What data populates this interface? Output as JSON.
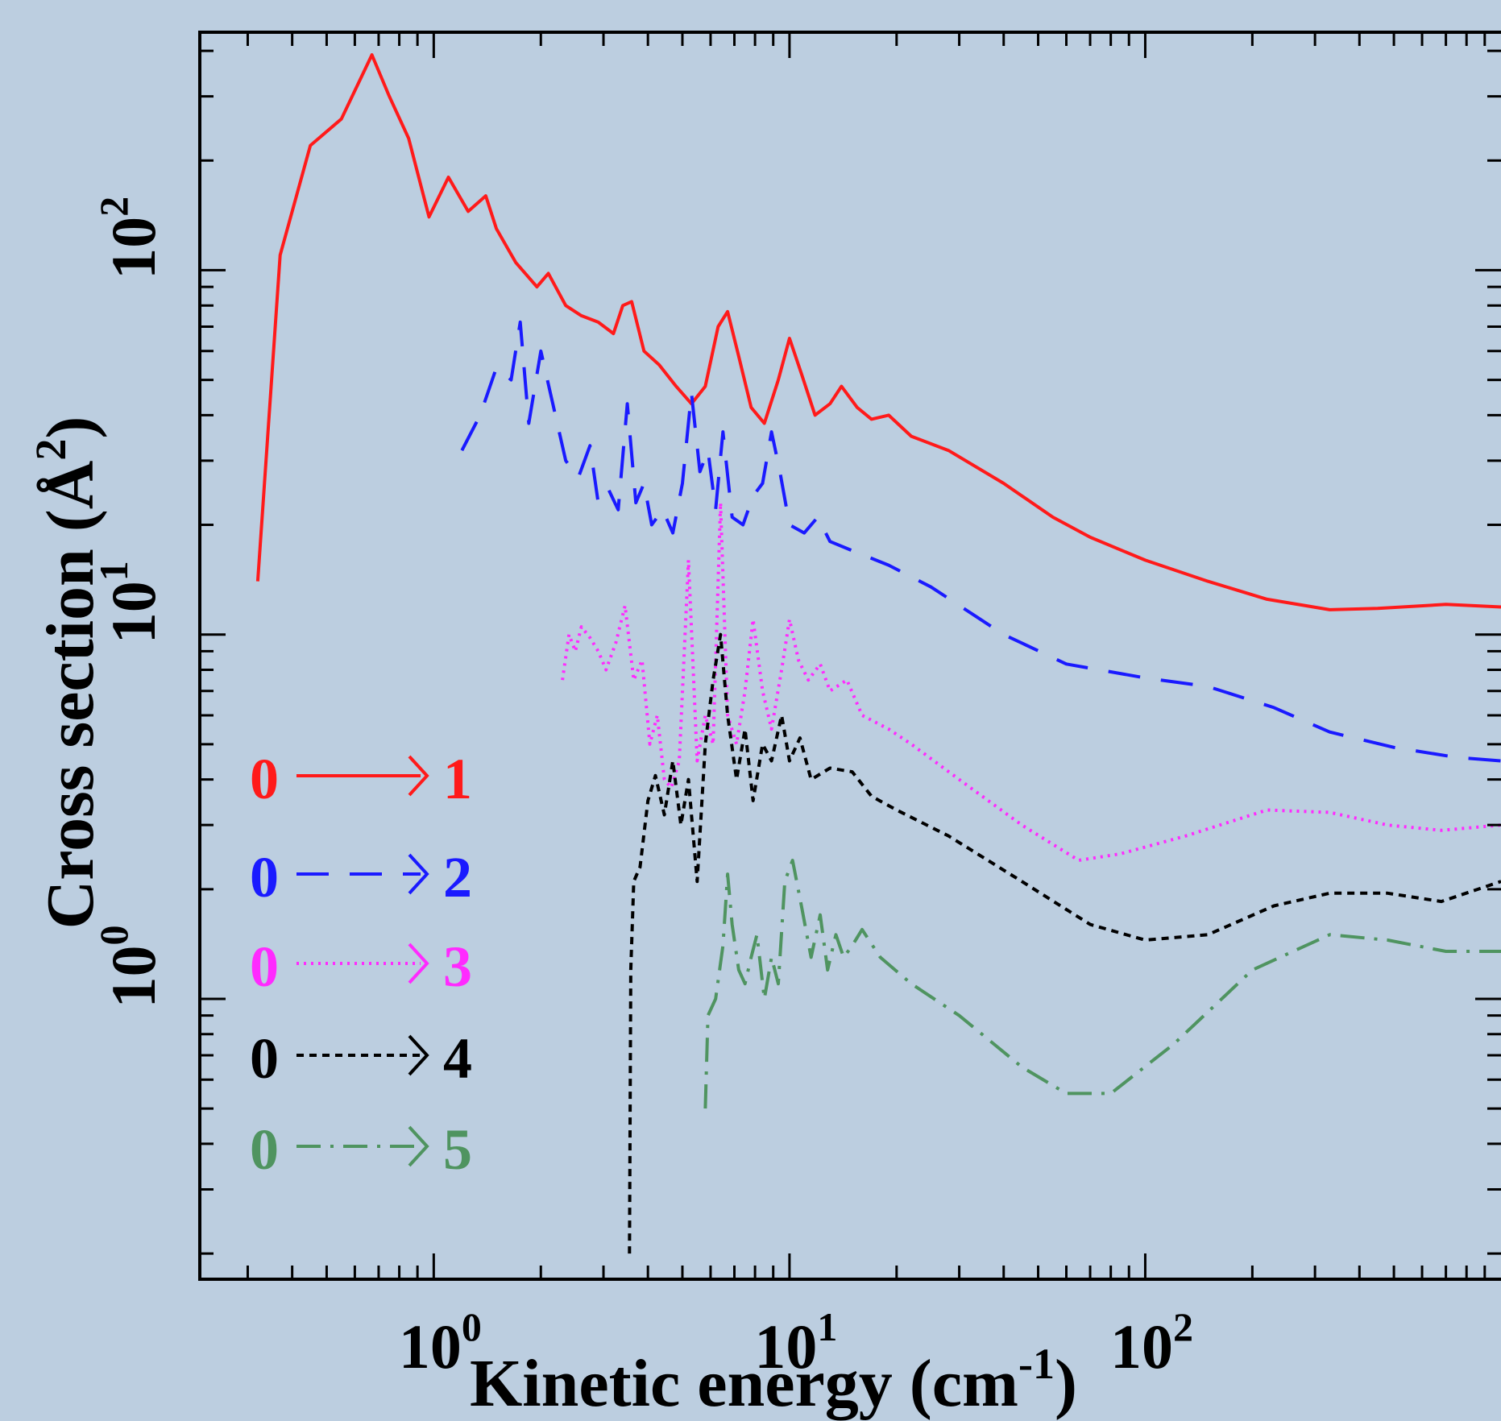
{
  "chart_data": {
    "type": "line",
    "xlabel": "Kinetic energy (cm",
    "xlabel_sup": "-1",
    "xlabel_close": ")",
    "ylabel": "Cross section (Å",
    "ylabel_sup": "2",
    "ylabel_close": ")",
    "xscale": "log",
    "yscale": "log",
    "xlim": [
      0.22,
      1000
    ],
    "ylim": [
      0.17,
      450
    ],
    "x_ticks": [
      {
        "value": 1,
        "base": "10",
        "exp": "0"
      },
      {
        "value": 10,
        "base": "10",
        "exp": "1"
      },
      {
        "value": 100,
        "base": "10",
        "exp": "2"
      }
    ],
    "y_ticks": [
      {
        "value": 1,
        "base": "10",
        "exp": "0"
      },
      {
        "value": 10,
        "base": "10",
        "exp": "1"
      },
      {
        "value": 100,
        "base": "10",
        "exp": "2"
      }
    ],
    "grid": false,
    "legend_position": "bottom-left",
    "series": [
      {
        "name": "0 → 1",
        "from": "0",
        "to": "1",
        "color": "#ff1a1a",
        "dash": "solid",
        "points": [
          [
            0.32,
            14
          ],
          [
            0.37,
            110
          ],
          [
            0.45,
            220
          ],
          [
            0.55,
            260
          ],
          [
            0.67,
            390
          ],
          [
            0.75,
            300
          ],
          [
            0.85,
            230
          ],
          [
            0.97,
            140
          ],
          [
            1.1,
            180
          ],
          [
            1.25,
            145
          ],
          [
            1.4,
            160
          ],
          [
            1.5,
            130
          ],
          [
            1.7,
            105
          ],
          [
            1.95,
            90
          ],
          [
            2.1,
            98
          ],
          [
            2.35,
            80
          ],
          [
            2.6,
            75
          ],
          [
            2.9,
            72
          ],
          [
            3.2,
            67
          ],
          [
            3.4,
            80
          ],
          [
            3.6,
            82
          ],
          [
            3.9,
            60
          ],
          [
            4.3,
            55
          ],
          [
            4.8,
            48
          ],
          [
            5.3,
            43
          ],
          [
            5.8,
            48
          ],
          [
            6.3,
            70
          ],
          [
            6.7,
            77
          ],
          [
            7.2,
            58
          ],
          [
            7.8,
            42
          ],
          [
            8.5,
            38
          ],
          [
            9.3,
            50
          ],
          [
            10,
            65
          ],
          [
            10.8,
            52
          ],
          [
            11.8,
            40
          ],
          [
            13,
            43
          ],
          [
            14,
            48
          ],
          [
            15.5,
            42
          ],
          [
            17,
            39
          ],
          [
            19,
            40
          ],
          [
            22,
            35
          ],
          [
            28,
            32
          ],
          [
            40,
            26
          ],
          [
            55,
            21
          ],
          [
            70,
            18.5
          ],
          [
            100,
            16
          ],
          [
            150,
            14
          ],
          [
            220,
            12.5
          ],
          [
            330,
            11.7
          ],
          [
            450,
            11.8
          ],
          [
            700,
            12.1
          ],
          [
            1000,
            11.9
          ]
        ]
      },
      {
        "name": "0 → 2",
        "from": "0",
        "to": "2",
        "color": "#1a1aff",
        "dash": "long-dash",
        "points": [
          [
            1.2,
            32
          ],
          [
            1.35,
            40
          ],
          [
            1.5,
            54
          ],
          [
            1.65,
            50
          ],
          [
            1.75,
            72
          ],
          [
            1.85,
            38
          ],
          [
            2.0,
            60
          ],
          [
            2.15,
            44
          ],
          [
            2.35,
            30
          ],
          [
            2.55,
            27
          ],
          [
            2.75,
            33
          ],
          [
            2.9,
            23
          ],
          [
            3.1,
            25
          ],
          [
            3.3,
            22
          ],
          [
            3.5,
            43
          ],
          [
            3.7,
            23
          ],
          [
            3.9,
            26
          ],
          [
            4.1,
            20
          ],
          [
            4.4,
            22
          ],
          [
            4.7,
            19
          ],
          [
            5.0,
            26
          ],
          [
            5.3,
            46
          ],
          [
            5.6,
            28
          ],
          [
            5.9,
            32
          ],
          [
            6.2,
            22
          ],
          [
            6.5,
            36
          ],
          [
            6.9,
            21
          ],
          [
            7.4,
            20
          ],
          [
            7.9,
            24
          ],
          [
            8.4,
            26
          ],
          [
            8.9,
            36
          ],
          [
            9.4,
            28
          ],
          [
            10,
            20
          ],
          [
            11,
            19
          ],
          [
            12,
            21
          ],
          [
            13,
            18
          ],
          [
            15,
            17
          ],
          [
            19,
            15.5
          ],
          [
            25,
            13.5
          ],
          [
            40,
            10
          ],
          [
            60,
            8.3
          ],
          [
            100,
            7.6
          ],
          [
            150,
            7.2
          ],
          [
            230,
            6.3
          ],
          [
            330,
            5.4
          ],
          [
            500,
            4.9
          ],
          [
            750,
            4.6
          ],
          [
            1000,
            4.5
          ]
        ]
      },
      {
        "name": "0 → 3",
        "from": "0",
        "to": "3",
        "color": "#ff2aff",
        "dash": "dotted",
        "points": [
          [
            2.3,
            7.5
          ],
          [
            2.4,
            10
          ],
          [
            2.5,
            9
          ],
          [
            2.6,
            10.5
          ],
          [
            2.75,
            9.8
          ],
          [
            2.9,
            9
          ],
          [
            3.05,
            8
          ],
          [
            3.25,
            9.5
          ],
          [
            3.45,
            12
          ],
          [
            3.65,
            7.5
          ],
          [
            3.85,
            8.5
          ],
          [
            4.05,
            5
          ],
          [
            4.25,
            6
          ],
          [
            4.45,
            4
          ],
          [
            4.65,
            3.8
          ],
          [
            4.9,
            4.5
          ],
          [
            5.2,
            16
          ],
          [
            5.5,
            4.5
          ],
          [
            5.8,
            6
          ],
          [
            6.1,
            5
          ],
          [
            6.4,
            23
          ],
          [
            6.7,
            6
          ],
          [
            7.1,
            5
          ],
          [
            7.5,
            7
          ],
          [
            7.9,
            11
          ],
          [
            8.4,
            7
          ],
          [
            8.9,
            5.5
          ],
          [
            9.5,
            8
          ],
          [
            10,
            11
          ],
          [
            10.6,
            8.5
          ],
          [
            11.3,
            7.5
          ],
          [
            12.2,
            8.3
          ],
          [
            13,
            7
          ],
          [
            14.5,
            7.5
          ],
          [
            16,
            6
          ],
          [
            19,
            5.5
          ],
          [
            22,
            5
          ],
          [
            30,
            4
          ],
          [
            45,
            3
          ],
          [
            65,
            2.4
          ],
          [
            85,
            2.5
          ],
          [
            130,
            2.8
          ],
          [
            220,
            3.3
          ],
          [
            330,
            3.25
          ],
          [
            480,
            3.0
          ],
          [
            680,
            2.9
          ],
          [
            1000,
            3.0
          ]
        ]
      },
      {
        "name": "0 → 4",
        "from": "0",
        "to": "4",
        "color": "#000000",
        "dash": "short-dash",
        "points": [
          [
            3.55,
            0.2
          ],
          [
            3.58,
            1.2
          ],
          [
            3.65,
            2.1
          ],
          [
            3.8,
            2.3
          ],
          [
            4.0,
            3.5
          ],
          [
            4.2,
            4.1
          ],
          [
            4.45,
            3.2
          ],
          [
            4.7,
            4.5
          ],
          [
            4.95,
            3.0
          ],
          [
            5.2,
            4.0
          ],
          [
            5.5,
            2.1
          ],
          [
            5.8,
            5.0
          ],
          [
            6.1,
            7.5
          ],
          [
            6.4,
            10
          ],
          [
            6.7,
            6
          ],
          [
            7.1,
            4
          ],
          [
            7.5,
            5.5
          ],
          [
            7.9,
            3.5
          ],
          [
            8.4,
            5.0
          ],
          [
            8.9,
            4.5
          ],
          [
            9.5,
            6.0
          ],
          [
            10,
            4.5
          ],
          [
            10.7,
            5.2
          ],
          [
            11.5,
            4.0
          ],
          [
            13,
            4.3
          ],
          [
            15,
            4.2
          ],
          [
            17,
            3.6
          ],
          [
            20,
            3.3
          ],
          [
            28,
            2.8
          ],
          [
            45,
            2.1
          ],
          [
            70,
            1.6
          ],
          [
            100,
            1.45
          ],
          [
            150,
            1.5
          ],
          [
            230,
            1.8
          ],
          [
            330,
            1.95
          ],
          [
            480,
            1.95
          ],
          [
            680,
            1.85
          ],
          [
            1000,
            2.1
          ]
        ]
      },
      {
        "name": "0 → 5",
        "from": "0",
        "to": "5",
        "color": "#4f9460",
        "dash": "dash-dot",
        "points": [
          [
            5.8,
            0.5
          ],
          [
            5.9,
            0.9
          ],
          [
            6.2,
            1.0
          ],
          [
            6.5,
            1.4
          ],
          [
            6.7,
            2.2
          ],
          [
            6.9,
            1.6
          ],
          [
            7.2,
            1.2
          ],
          [
            7.5,
            1.1
          ],
          [
            7.8,
            1.3
          ],
          [
            8.1,
            1.5
          ],
          [
            8.5,
            1.0
          ],
          [
            8.9,
            1.3
          ],
          [
            9.3,
            1.1
          ],
          [
            9.7,
            2.1
          ],
          [
            10.2,
            2.4
          ],
          [
            10.8,
            1.8
          ],
          [
            11.5,
            1.3
          ],
          [
            12.2,
            1.7
          ],
          [
            12.8,
            1.2
          ],
          [
            13.5,
            1.5
          ],
          [
            14.2,
            1.3
          ],
          [
            15,
            1.4
          ],
          [
            16,
            1.55
          ],
          [
            18,
            1.3
          ],
          [
            22,
            1.1
          ],
          [
            30,
            0.9
          ],
          [
            45,
            0.65
          ],
          [
            60,
            0.55
          ],
          [
            80,
            0.55
          ],
          [
            120,
            0.75
          ],
          [
            200,
            1.2
          ],
          [
            330,
            1.5
          ],
          [
            480,
            1.45
          ],
          [
            700,
            1.35
          ],
          [
            1000,
            1.35
          ]
        ]
      }
    ]
  }
}
